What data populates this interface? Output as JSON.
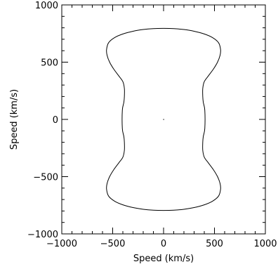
{
  "chart_data": {
    "type": "line",
    "title": "",
    "xlabel": "Speed (km/s)",
    "ylabel": "Speed (km/s)",
    "xlim": [
      -1000,
      1000
    ],
    "ylim": [
      -1000,
      1000
    ],
    "x_ticks": [
      -1000,
      -500,
      0,
      500,
      1000
    ],
    "y_ticks": [
      -1000,
      -500,
      0,
      500,
      1000
    ],
    "x_tick_labels": [
      "−1000",
      "−500",
      "0",
      "500",
      "1000"
    ],
    "y_tick_labels": [
      "−1000",
      "−500",
      "0",
      "500",
      "1000"
    ],
    "x_minor_step": 100,
    "y_minor_step": 100,
    "grid": false,
    "center_marker": {
      "x": 0,
      "y": 0
    },
    "series": [
      {
        "x": [
          0,
          100,
          200,
          300,
          400,
          480,
          540,
          560,
          555,
          530,
          490,
          440,
          400,
          385,
          385,
          390,
          405,
          405,
          390,
          385,
          385,
          400,
          440,
          490,
          530,
          555,
          560,
          540,
          480,
          400,
          300,
          200,
          100,
          0,
          -100,
          -200,
          -300,
          -400,
          -480,
          -540,
          -560,
          -555,
          -530,
          -490,
          -440,
          -400,
          -385,
          -385,
          -390,
          -405,
          -405,
          -390,
          -385,
          -385,
          -400,
          -440,
          -490,
          -530,
          -555,
          -560,
          -540,
          -480,
          -400,
          -300,
          -200,
          -100,
          0
        ],
        "y": [
          795,
          793,
          785,
          770,
          746,
          715,
          670,
          610,
          560,
          500,
          440,
          380,
          330,
          270,
          200,
          150,
          80,
          -80,
          -150,
          -200,
          -270,
          -330,
          -380,
          -440,
          -500,
          -560,
          -610,
          -670,
          -715,
          -746,
          -770,
          -785,
          -793,
          -795,
          -793,
          -785,
          -770,
          -746,
          -715,
          -670,
          -610,
          -560,
          -500,
          -440,
          -380,
          -330,
          -270,
          -200,
          -150,
          -80,
          80,
          150,
          200,
          270,
          330,
          380,
          440,
          500,
          560,
          610,
          670,
          715,
          746,
          770,
          785,
          793,
          795
        ]
      }
    ]
  }
}
